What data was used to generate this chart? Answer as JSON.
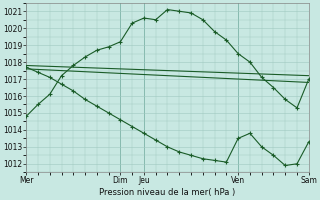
{
  "background_color": "#c8e8e2",
  "grid_color": "#a0c8c0",
  "line_color": "#1a5c28",
  "xlabel": "Pression niveau de la mer( hPa )",
  "ylim": [
    1011.5,
    1021.5
  ],
  "ytick_values": [
    1012,
    1013,
    1014,
    1015,
    1016,
    1017,
    1018,
    1019,
    1020,
    1021
  ],
  "xlim": [
    0,
    12
  ],
  "day_positions": [
    0,
    4,
    5,
    9,
    12
  ],
  "xtick_positions": [
    0,
    4,
    5,
    9,
    12
  ],
  "xtick_labels": [
    "Mer",
    "Dim",
    "Jeu",
    "Ven",
    "Sam"
  ],
  "series_peak": {
    "x": [
      0,
      0.5,
      1,
      1.5,
      2,
      2.5,
      3,
      3.5,
      4,
      4.5,
      5,
      5.5,
      6,
      6.5,
      7,
      7.5,
      8,
      8.5,
      9,
      9.5,
      10,
      10.5,
      11,
      11.5,
      12
    ],
    "y": [
      1014.8,
      1015.5,
      1016.1,
      1017.2,
      1017.8,
      1018.3,
      1018.7,
      1018.9,
      1019.2,
      1020.3,
      1020.6,
      1020.5,
      1021.1,
      1021.0,
      1020.9,
      1020.5,
      1019.8,
      1019.3,
      1018.5,
      1018.0,
      1017.1,
      1016.5,
      1015.8,
      1015.3,
      1017.0
    ]
  },
  "series_flat_high": {
    "x": [
      0,
      12
    ],
    "y": [
      1017.8,
      1017.2
    ]
  },
  "series_flat_mid": {
    "x": [
      0,
      12
    ],
    "y": [
      1017.6,
      1016.8
    ]
  },
  "series_steep": {
    "x": [
      0,
      0.5,
      1,
      1.5,
      2,
      2.5,
      3,
      3.5,
      4,
      4.5,
      5,
      5.5,
      6,
      6.5,
      7,
      7.5,
      8,
      8.5,
      9,
      9.5,
      10,
      10.5,
      11,
      11.5,
      12
    ],
    "y": [
      1017.7,
      1017.4,
      1017.1,
      1016.7,
      1016.3,
      1015.8,
      1015.4,
      1015.0,
      1014.6,
      1014.2,
      1013.8,
      1013.4,
      1013.0,
      1012.7,
      1012.5,
      1012.3,
      1012.2,
      1012.1,
      1013.5,
      1013.8,
      1013.0,
      1012.5,
      1011.9,
      1012.0,
      1013.3
    ]
  }
}
